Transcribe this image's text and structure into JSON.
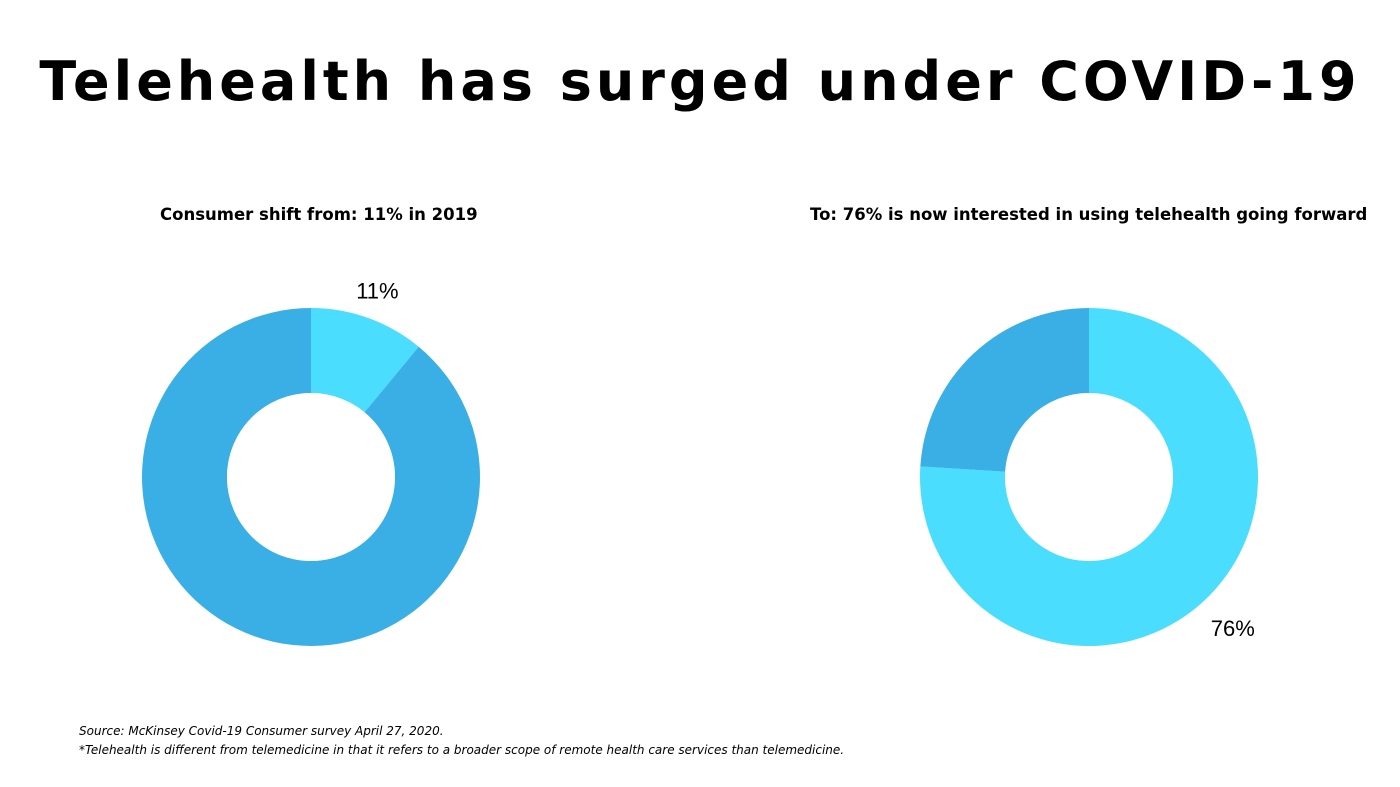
{
  "title": "Telehealth has surged under COVID-19",
  "footnotes": {
    "source": "Source: McKinsey Covid-19 Consumer survey April 27, 2020.",
    "definition": "*Telehealth is different from telemedicine in that it refers to a broader scope of remote health care services than telemedicine."
  },
  "colors": {
    "highlight": "#4ADDFD",
    "remainder": "#3AAFE6",
    "hole": "#FFFFFF"
  },
  "chart_data": [
    {
      "type": "pie",
      "title": "Consumer shift from: 11% in 2019",
      "slices": [
        {
          "value": 11,
          "color": "#4ADDFD",
          "label": "11%"
        },
        {
          "value": 89,
          "color": "#3AAFE6",
          "label": ""
        }
      ],
      "donut": true,
      "legend": "none"
    },
    {
      "type": "pie",
      "title": "To: 76% is now interested in using telehealth going forward",
      "slices": [
        {
          "value": 76,
          "color": "#4ADDFD",
          "label": "76%"
        },
        {
          "value": 24,
          "color": "#3AAFE6",
          "label": ""
        }
      ],
      "donut": true,
      "legend": "none"
    }
  ]
}
